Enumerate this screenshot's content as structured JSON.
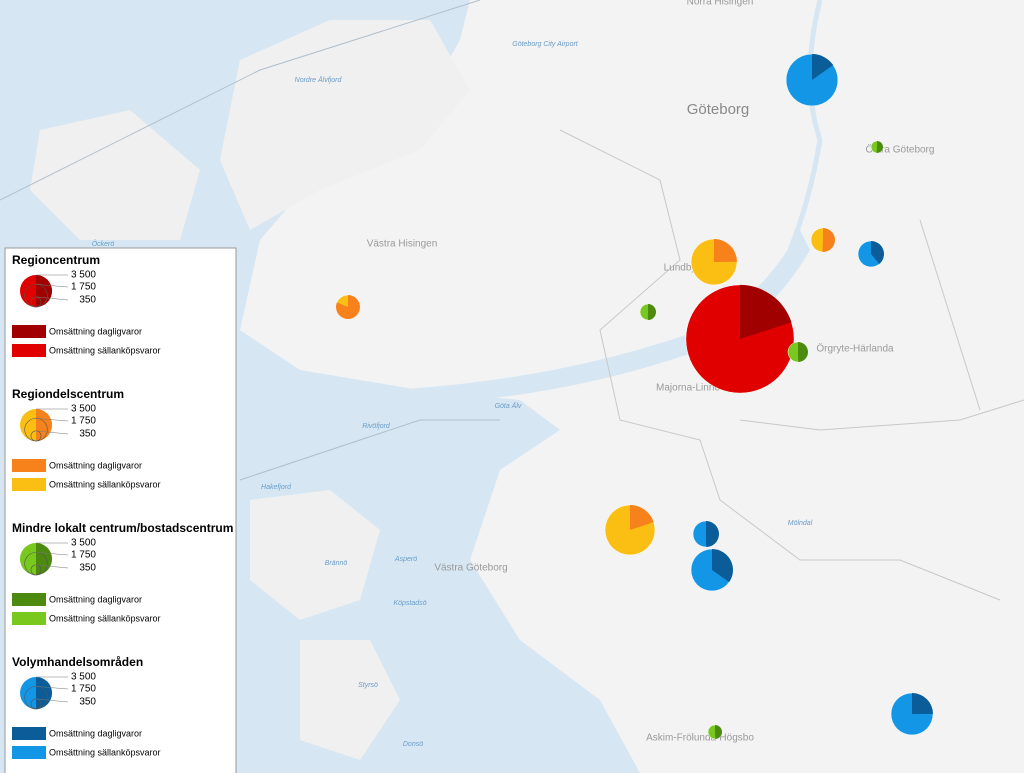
{
  "places": [
    "Norra Hisingen",
    "Göteborg City Airport",
    "Nordre Älvfjord",
    "Göteborg",
    "Östra Göteborg",
    "Västra Hisingen",
    "Lundby",
    "Örgryte-Härlanda",
    "Majorna-Linné",
    "Göta Älv",
    "Rivöfjord",
    "Hakefjord",
    "Mölndal",
    "Västra Göteborg",
    "Brännö",
    "Asperö",
    "Köpstadsö",
    "Styrsö",
    "Donsö",
    "Askim-Frölunda-Högsbo",
    "Öckerö"
  ],
  "legend": {
    "scale": [
      {
        "value": 3500,
        "label": "3 500"
      },
      {
        "value": 1750,
        "label": "1 750"
      },
      {
        "value": 350,
        "label": "350"
      }
    ],
    "sections": [
      {
        "title": "Regioncentrum",
        "daily": "Omsättning dagligvaror",
        "other": "Omsättning sällanköpsvaror",
        "dark": "#a10000",
        "light": "#e00000"
      },
      {
        "title": "Regiondelscentrum",
        "daily": "Omsättning dagligvaror",
        "other": "Omsättning sällanköpsvaror",
        "dark": "#f7821c",
        "light": "#fbbf14"
      },
      {
        "title": "Mindre lokalt centrum/bostadscentrum",
        "daily": "Omsättning dagligvaror",
        "other": "Omsättning sällanköpsvaror",
        "dark": "#4c8a10",
        "light": "#78c81e"
      },
      {
        "title": "Volymhandelsområden",
        "daily": "Omsättning dagligvaror",
        "other": "Omsättning sällanköpsvaror",
        "dark": "#0a5d99",
        "light": "#1496e6"
      }
    ]
  },
  "markers": [
    {
      "section": 3,
      "total": 9200,
      "daily": 1400
    },
    {
      "section": 2,
      "total": 490,
      "daily": 250
    },
    {
      "section": 1,
      "total": 1970,
      "daily": 1000
    },
    {
      "section": 3,
      "total": 2310,
      "daily": 900
    },
    {
      "section": 1,
      "total": 7230,
      "daily": 1800
    },
    {
      "section": 2,
      "total": 875,
      "daily": 440
    },
    {
      "section": 1,
      "total": 1970,
      "daily": 1600
    },
    {
      "section": 0,
      "total": 40000,
      "daily": 8000
    },
    {
      "section": 2,
      "total": 1370,
      "daily": 680
    },
    {
      "section": 1,
      "total": 8540,
      "daily": 1700
    },
    {
      "section": 3,
      "total": 2310,
      "daily": 1150
    },
    {
      "section": 3,
      "total": 6030,
      "daily": 2100
    },
    {
      "section": 2,
      "total": 670,
      "daily": 330
    },
    {
      "section": 3,
      "total": 6030,
      "daily": 1500
    }
  ]
}
